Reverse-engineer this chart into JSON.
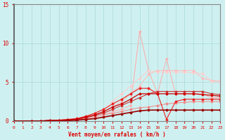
{
  "xlabel": "Vent moyen/en rafales ( km/h )",
  "xlim": [
    0,
    23
  ],
  "ylim": [
    0,
    15
  ],
  "yticks": [
    0,
    5,
    10,
    15
  ],
  "xticks": [
    0,
    1,
    2,
    3,
    4,
    5,
    6,
    7,
    8,
    9,
    10,
    11,
    12,
    13,
    14,
    15,
    16,
    17,
    18,
    19,
    20,
    21,
    22,
    23
  ],
  "bg_color": "#cff0f0",
  "grid_color": "#aad8d8",
  "text_color": "#dd0000",
  "lines": [
    {
      "x": [
        0,
        2,
        3,
        4,
        5,
        6,
        7,
        8,
        9,
        10,
        11,
        12,
        13,
        14,
        15,
        16,
        17,
        18,
        19,
        20,
        21,
        22,
        23
      ],
      "y": [
        0,
        0,
        0,
        0,
        0,
        0.1,
        0.15,
        0.3,
        0.5,
        0.8,
        1.0,
        1.2,
        1.5,
        1.7,
        1.8,
        2.0,
        2.2,
        2.3,
        2.4,
        2.5,
        2.5,
        2.5,
        2.5
      ],
      "color": "#ee8888",
      "lw": 0.7,
      "marker": "D",
      "ms": 1.5
    },
    {
      "x": [
        0,
        2,
        3,
        4,
        5,
        6,
        7,
        8,
        9,
        10,
        11,
        12,
        13,
        14,
        15,
        16,
        17,
        18,
        19,
        20,
        21,
        22,
        23
      ],
      "y": [
        0,
        0,
        0,
        0,
        0,
        0.2,
        0.3,
        0.5,
        0.8,
        1.2,
        1.8,
        2.5,
        3.5,
        4.5,
        6.0,
        6.5,
        6.5,
        6.5,
        6.5,
        6.5,
        5.5,
        5.2,
        5.1
      ],
      "color": "#ffbbbb",
      "lw": 0.7,
      "marker": "D",
      "ms": 1.5
    },
    {
      "x": [
        0,
        2,
        3,
        4,
        5,
        6,
        7,
        8,
        9,
        10,
        11,
        12,
        13,
        14,
        15,
        16,
        17,
        18,
        19,
        20,
        21,
        22,
        23
      ],
      "y": [
        0,
        0,
        0,
        0,
        0,
        0.1,
        0.2,
        0.3,
        0.5,
        0.8,
        1.2,
        1.5,
        2.0,
        11.5,
        6.5,
        3.5,
        8.0,
        3.5,
        3.5,
        3.5,
        3.5,
        3.0,
        3.0
      ],
      "color": "#ffaaaa",
      "lw": 0.7,
      "marker": "+",
      "ms": 3.0
    },
    {
      "x": [
        0,
        2,
        3,
        4,
        5,
        6,
        7,
        8,
        9,
        10,
        11,
        12,
        13,
        14,
        15,
        16,
        17,
        18,
        19,
        20,
        21,
        22,
        23
      ],
      "y": [
        0,
        0,
        0,
        0,
        0.1,
        0.2,
        0.3,
        0.6,
        1.0,
        1.5,
        2.5,
        3.5,
        4.5,
        5.5,
        6.5,
        6.3,
        6.3,
        6.3,
        6.3,
        6.2,
        6.1,
        5.1,
        5.0
      ],
      "color": "#ffcccc",
      "lw": 0.7,
      "marker": "D",
      "ms": 1.5
    },
    {
      "x": [
        0,
        2,
        3,
        4,
        5,
        6,
        7,
        8,
        9,
        10,
        11,
        12,
        13,
        14,
        15,
        16,
        17,
        18,
        19,
        20,
        21,
        22,
        23
      ],
      "y": [
        0,
        0,
        0,
        0,
        0.1,
        0.1,
        0.2,
        0.4,
        0.7,
        1.0,
        1.5,
        2.0,
        2.5,
        3.0,
        3.5,
        3.8,
        3.8,
        3.8,
        3.8,
        3.8,
        3.8,
        3.5,
        3.4
      ],
      "color": "#cc3333",
      "lw": 0.8,
      "marker": "D",
      "ms": 1.5
    },
    {
      "x": [
        0,
        2,
        3,
        4,
        5,
        6,
        7,
        8,
        9,
        10,
        11,
        12,
        13,
        14,
        15,
        16,
        17,
        18,
        19,
        20,
        21,
        22,
        23
      ],
      "y": [
        0,
        0,
        0,
        0.1,
        0.1,
        0.2,
        0.3,
        0.6,
        1.0,
        1.5,
        2.2,
        2.8,
        3.5,
        4.2,
        4.2,
        3.5,
        0.2,
        2.5,
        2.8,
        2.8,
        2.8,
        2.8,
        2.8
      ],
      "color": "#ee2222",
      "lw": 0.8,
      "marker": "D",
      "ms": 1.5
    },
    {
      "x": [
        0,
        2,
        3,
        4,
        5,
        6,
        7,
        8,
        9,
        10,
        11,
        12,
        13,
        14,
        15,
        16,
        17,
        18,
        19,
        20,
        21,
        22,
        23
      ],
      "y": [
        0,
        0,
        0,
        0.1,
        0.1,
        0.15,
        0.25,
        0.5,
        0.8,
        1.2,
        1.8,
        2.2,
        2.8,
        3.5,
        3.5,
        3.5,
        3.5,
        3.5,
        3.5,
        3.5,
        3.4,
        3.3,
        3.2
      ],
      "color": "#cc0000",
      "lw": 0.9,
      "marker": "D",
      "ms": 1.5
    },
    {
      "x": [
        0,
        2,
        3,
        4,
        5,
        6,
        7,
        8,
        9,
        10,
        11,
        12,
        13,
        14,
        15,
        16,
        17,
        18,
        19,
        20,
        21,
        22,
        23
      ],
      "y": [
        0,
        0,
        0,
        0,
        0,
        0.05,
        0.1,
        0.2,
        0.3,
        0.5,
        0.7,
        0.9,
        1.1,
        1.3,
        1.4,
        1.4,
        1.4,
        1.4,
        1.4,
        1.4,
        1.4,
        1.4,
        1.4
      ],
      "color": "#990000",
      "lw": 1.2,
      "marker": "D",
      "ms": 1.5
    }
  ]
}
